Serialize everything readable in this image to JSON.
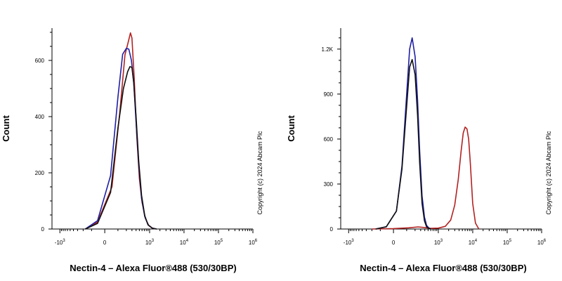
{
  "chart_data": [
    {
      "type": "line",
      "xlabel": "Nectin-4 – Alexa Fluor®488 (530/30BP)",
      "ylabel": "Count",
      "copyright": "Copyright (c) 2024 Abcam Plc",
      "x_scale": "biexponential",
      "x_ticks": [
        {
          "value": -1000,
          "base": "-10",
          "exp": "3"
        },
        {
          "value": 0,
          "base": "0",
          "exp": ""
        },
        {
          "value": 1000,
          "base": "10",
          "exp": "3"
        },
        {
          "value": 10000,
          "base": "10",
          "exp": "4"
        },
        {
          "value": 100000,
          "base": "10",
          "exp": "5"
        },
        {
          "value": 1000000,
          "base": "10",
          "exp": "6"
        }
      ],
      "y_ticks": [
        {
          "value": 0,
          "label": "0"
        },
        {
          "value": 200,
          "label": "200"
        },
        {
          "value": 400,
          "label": "400"
        },
        {
          "value": 600,
          "label": "600"
        }
      ],
      "ylim": [
        0,
        715
      ],
      "colors": {
        "red": "#b22222",
        "blue": "#1f1fa6",
        "black": "#111111"
      },
      "series": [
        {
          "color": "red",
          "x": [
            -170,
            -50,
            50,
            120,
            180,
            230,
            270,
            300,
            350,
            420,
            500,
            600,
            750,
            950,
            1200,
            1600
          ],
          "y": [
            0,
            25,
            150,
            420,
            620,
            665,
            698,
            680,
            540,
            330,
            180,
            95,
            38,
            12,
            3,
            0
          ]
        },
        {
          "color": "blue",
          "x": [
            -170,
            -50,
            40,
            100,
            150,
            200,
            240,
            290,
            340,
            400,
            480,
            580,
            720,
            900,
            1200,
            1600
          ],
          "y": [
            0,
            30,
            190,
            470,
            622,
            643,
            640,
            600,
            520,
            380,
            230,
            110,
            45,
            15,
            3,
            0
          ]
        },
        {
          "color": "black",
          "x": [
            -170,
            -50,
            40,
            100,
            160,
            220,
            260,
            300,
            340,
            400,
            480,
            580,
            720,
            900,
            1200,
            1600
          ],
          "y": [
            0,
            20,
            130,
            360,
            500,
            560,
            578,
            575,
            520,
            400,
            240,
            120,
            48,
            15,
            3,
            0
          ]
        }
      ]
    },
    {
      "type": "line",
      "xlabel": "Nectin-4 – Alexa Fluor®488 (530/30BP)",
      "ylabel": "Count",
      "copyright": "Copyright (c) 2024 Abcam Plc",
      "x_scale": "biexponential",
      "x_ticks": [
        {
          "value": -1000,
          "base": "-10",
          "exp": "3"
        },
        {
          "value": 0,
          "base": "0",
          "exp": ""
        },
        {
          "value": 1000,
          "base": "10",
          "exp": "3"
        },
        {
          "value": 10000,
          "base": "10",
          "exp": "4"
        },
        {
          "value": 100000,
          "base": "10",
          "exp": "5"
        },
        {
          "value": 1000000,
          "base": "10",
          "exp": "6"
        }
      ],
      "y_ticks": [
        {
          "value": 0,
          "label": "0"
        },
        {
          "value": 300,
          "label": "300"
        },
        {
          "value": 600,
          "label": "600"
        },
        {
          "value": 900,
          "label": "900"
        },
        {
          "value": 1200,
          "label": "1.2K"
        }
      ],
      "ylim": [
        0,
        1340
      ],
      "colors": {
        "red": "#b22222",
        "blue": "#1f1fa6",
        "black": "#111111"
      },
      "series": [
        {
          "color": "red",
          "x": [
            -200,
            0,
            120,
            250,
            400,
            600,
            1000,
            1600,
            2300,
            3000,
            3800,
            4600,
            5300,
            6000,
            6800,
            7600,
            8500,
            10000,
            12000,
            15000
          ],
          "y": [
            0,
            3,
            8,
            14,
            10,
            4,
            6,
            18,
            60,
            160,
            330,
            520,
            640,
            680,
            668,
            600,
            440,
            170,
            40,
            0
          ]
        },
        {
          "color": "blue",
          "x": [
            -150,
            -50,
            20,
            60,
            100,
            130,
            160,
            200,
            240,
            280,
            330,
            390,
            450,
            520,
            600
          ],
          "y": [
            0,
            15,
            120,
            420,
            900,
            1200,
            1275,
            1150,
            860,
            520,
            220,
            80,
            25,
            8,
            0
          ]
        },
        {
          "color": "black",
          "x": [
            -150,
            -50,
            20,
            60,
            100,
            130,
            160,
            200,
            240,
            280,
            330,
            390,
            450,
            520,
            600
          ],
          "y": [
            0,
            15,
            120,
            400,
            820,
            1080,
            1130,
            1030,
            760,
            440,
            170,
            55,
            15,
            5,
            0
          ]
        }
      ]
    }
  ]
}
